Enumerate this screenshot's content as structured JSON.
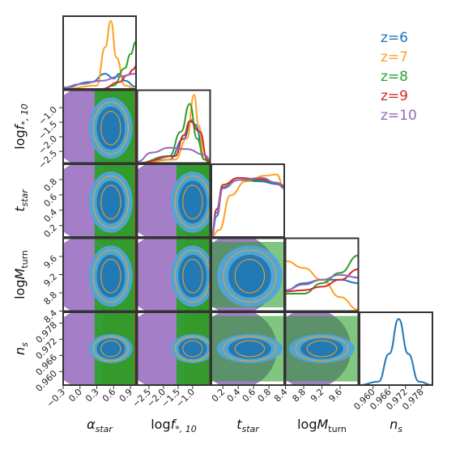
{
  "chart_data": {
    "type": "corner",
    "params": [
      {
        "label": "α_star",
        "label_main": "α",
        "label_sub": "star",
        "range": [
          -0.3,
          1.0
        ],
        "ticks": [
          -0.3,
          0.0,
          0.3,
          0.6,
          0.9
        ],
        "tick_labels": [
          "−0.3",
          "0.0",
          "0.3",
          "0.6",
          "0.9"
        ]
      },
      {
        "label": "log f_{*,10}",
        "label_main": "log f",
        "label_sub": "*, 10",
        "range": [
          -2.9,
          -0.4
        ],
        "ticks": [
          -2.5,
          -2.0,
          -1.5,
          -1.0
        ],
        "tick_labels": [
          "−2.5",
          "−2.0",
          "−1.5",
          "−1.0"
        ]
      },
      {
        "label": "t_star",
        "label_main": "t",
        "label_sub": "star",
        "range": [
          0.05,
          1.0
        ],
        "ticks": [
          0.2,
          0.4,
          0.6,
          0.8
        ],
        "tick_labels": [
          "0.2",
          "0.4",
          "0.6",
          "0.8"
        ]
      },
      {
        "label": "log M_turn",
        "label_main": "log M",
        "label_sub": "turn",
        "range": [
          8.4,
          10.0
        ],
        "ticks": [
          8.4,
          8.8,
          9.2,
          9.6
        ],
        "tick_labels": [
          "8.4",
          "8.8",
          "9.2",
          "9.6"
        ]
      },
      {
        "label": "n_s",
        "label_main": "n",
        "label_sub": "s",
        "range": [
          0.955,
          0.982
        ],
        "ticks": [
          0.96,
          0.966,
          0.972,
          0.978
        ],
        "tick_labels": [
          "0.960",
          "0.966",
          "0.972",
          "0.978"
        ]
      }
    ],
    "series": [
      {
        "name": "z=6",
        "color": "#1f77b4"
      },
      {
        "name": "z=7",
        "color": "#ff9f1c"
      },
      {
        "name": "z=8",
        "color": "#2ca02c"
      },
      {
        "name": "z=9",
        "color": "#d62728"
      },
      {
        "name": "z=10",
        "color": "#9467bd"
      }
    ],
    "marginals": [
      {
        "param": 0,
        "curves": [
          {
            "series": "z=6",
            "x": [
              -0.3,
              0.2,
              0.45,
              0.6,
              0.7,
              0.8,
              1.0
            ],
            "y": [
              0.02,
              0.1,
              0.22,
              0.15,
              0.22,
              0.12,
              0.03
            ]
          },
          {
            "series": "z=7",
            "x": [
              -0.3,
              0.3,
              0.45,
              0.55,
              0.65,
              0.8,
              1.0
            ],
            "y": [
              0.0,
              0.05,
              0.6,
              0.98,
              0.45,
              0.05,
              0.0
            ]
          },
          {
            "series": "z=8",
            "x": [
              -0.3,
              0.4,
              0.6,
              0.8,
              0.9,
              1.0
            ],
            "y": [
              0.0,
              0.0,
              0.05,
              0.3,
              0.5,
              0.68
            ]
          },
          {
            "series": "z=9",
            "x": [
              -0.3,
              0.4,
              0.7,
              0.85,
              0.95,
              1.0
            ],
            "y": [
              0.0,
              0.0,
              0.1,
              0.2,
              0.28,
              0.33
            ]
          },
          {
            "series": "z=10",
            "x": [
              -0.3,
              0.0,
              0.4,
              0.7,
              1.0
            ],
            "y": [
              0.02,
              0.07,
              0.12,
              0.18,
              0.22
            ]
          }
        ]
      },
      {
        "param": 1,
        "curves": [
          {
            "series": "z=6",
            "x": [
              -2.9,
              -1.8,
              -1.3,
              -1.05,
              -0.9,
              -0.6,
              -0.4
            ],
            "y": [
              0.0,
              0.05,
              0.35,
              0.62,
              0.55,
              0.05,
              0.0
            ]
          },
          {
            "series": "z=7",
            "x": [
              -2.9,
              -1.6,
              -1.2,
              -0.95,
              -0.8,
              -0.6,
              -0.4
            ],
            "y": [
              0.0,
              0.05,
              0.35,
              0.98,
              0.55,
              0.05,
              0.0
            ]
          },
          {
            "series": "z=8",
            "x": [
              -2.9,
              -1.8,
              -1.4,
              -1.1,
              -0.85,
              -0.6,
              -0.4
            ],
            "y": [
              0.0,
              0.1,
              0.45,
              0.85,
              0.35,
              0.05,
              0.0
            ]
          },
          {
            "series": "z=9",
            "x": [
              -2.9,
              -1.6,
              -1.3,
              -1.1,
              -0.75,
              -0.5,
              -0.4
            ],
            "y": [
              0.0,
              0.1,
              0.4,
              0.6,
              0.45,
              0.05,
              0.0
            ]
          },
          {
            "series": "z=10",
            "x": [
              -2.9,
              -2.4,
              -1.8,
              -1.2,
              -0.6,
              -0.4
            ],
            "y": [
              0.02,
              0.15,
              0.22,
              0.2,
              0.12,
              0.05
            ]
          }
        ]
      },
      {
        "param": 2,
        "curves": [
          {
            "series": "z=6",
            "x": [
              0.05,
              0.12,
              0.2,
              0.4,
              0.7,
              0.9,
              1.0
            ],
            "y": [
              0.0,
              0.3,
              0.7,
              0.82,
              0.8,
              0.76,
              0.72
            ]
          },
          {
            "series": "z=7",
            "x": [
              0.05,
              0.15,
              0.3,
              0.5,
              0.75,
              0.9,
              1.0
            ],
            "y": [
              0.0,
              0.1,
              0.6,
              0.8,
              0.88,
              0.9,
              0.7
            ]
          },
          {
            "series": "z=8",
            "x": [
              0.05,
              0.12,
              0.2,
              0.4,
              0.7,
              0.9,
              1.0
            ],
            "y": [
              0.0,
              0.4,
              0.72,
              0.82,
              0.82,
              0.78,
              0.74
            ]
          },
          {
            "series": "z=9",
            "x": [
              0.05,
              0.12,
              0.2,
              0.4,
              0.7,
              0.9,
              1.0
            ],
            "y": [
              0.0,
              0.4,
              0.75,
              0.85,
              0.83,
              0.78,
              0.72
            ]
          },
          {
            "series": "z=10",
            "x": [
              0.05,
              0.12,
              0.2,
              0.4,
              0.7,
              0.9,
              1.0
            ],
            "y": [
              0.0,
              0.35,
              0.7,
              0.82,
              0.85,
              0.78,
              0.7
            ]
          }
        ]
      },
      {
        "param": 3,
        "curves": [
          {
            "series": "z=6",
            "x": [
              8.4,
              8.8,
              9.2,
              9.6,
              10.0
            ],
            "y": [
              0.3,
              0.4,
              0.45,
              0.45,
              0.4
            ]
          },
          {
            "series": "z=7",
            "x": [
              8.4,
              8.8,
              9.2,
              9.6,
              10.0
            ],
            "y": [
              0.72,
              0.62,
              0.45,
              0.2,
              0.02
            ]
          },
          {
            "series": "z=8",
            "x": [
              8.4,
              8.8,
              9.2,
              9.6,
              10.0
            ],
            "y": [
              0.25,
              0.25,
              0.4,
              0.55,
              0.8
            ]
          },
          {
            "series": "z=9",
            "x": [
              8.4,
              8.8,
              9.2,
              9.6,
              10.0
            ],
            "y": [
              0.28,
              0.3,
              0.35,
              0.45,
              0.6
            ]
          },
          {
            "series": "z=10",
            "x": [
              8.4,
              8.8,
              9.2,
              9.6,
              10.0
            ],
            "y": [
              0.3,
              0.38,
              0.45,
              0.52,
              0.48
            ]
          }
        ]
      },
      {
        "param": 4,
        "curves": [
          {
            "series": "z=6",
            "x": [
              0.955,
              0.962,
              0.966,
              0.9695,
              0.973,
              0.977,
              0.982
            ],
            "y": [
              0.0,
              0.05,
              0.45,
              0.95,
              0.45,
              0.05,
              0.0
            ]
          }
        ]
      }
    ],
    "legend_placement": "top-right",
    "grid": false
  }
}
